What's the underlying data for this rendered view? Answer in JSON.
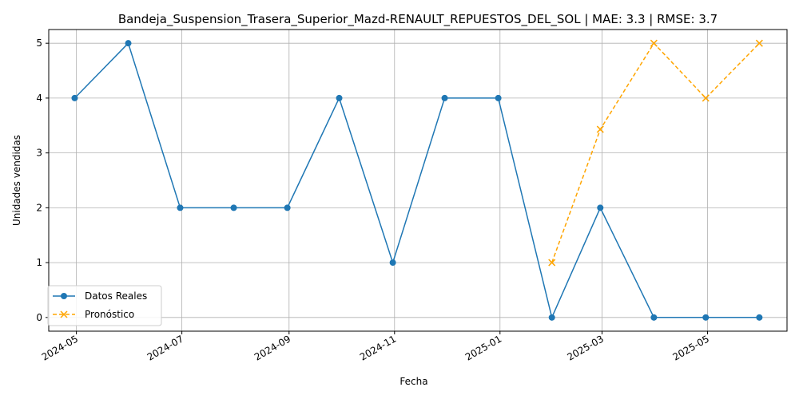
{
  "chart_data": {
    "type": "line",
    "title": "Bandeja_Suspension_Trasera_Superior_Mazd-RENAULT_REPUESTOS_DEL_SOL | MAE: 3.3 | RMSE: 3.7",
    "xlabel": "Fecha",
    "ylabel": "Unidades vendidas",
    "x_ticks": [
      "2024-05",
      "2024-07",
      "2024-09",
      "2024-11",
      "2025-01",
      "2025-03",
      "2025-05"
    ],
    "y_ticks": [
      0,
      1,
      2,
      3,
      4,
      5
    ],
    "ylim": [
      -0.25,
      5.25
    ],
    "xlim": [
      "2024-04-15",
      "2025-06-16"
    ],
    "grid": true,
    "legend_position": "lower-left",
    "series": [
      {
        "name": "Datos Reales",
        "color": "#1f77b4",
        "linestyle": "solid",
        "marker": "circle",
        "points": [
          {
            "x": "2024-04-30",
            "y": 4
          },
          {
            "x": "2024-05-31",
            "y": 5
          },
          {
            "x": "2024-06-30",
            "y": 2
          },
          {
            "x": "2024-07-31",
            "y": 2
          },
          {
            "x": "2024-08-31",
            "y": 2
          },
          {
            "x": "2024-09-30",
            "y": 4
          },
          {
            "x": "2024-10-31",
            "y": 1
          },
          {
            "x": "2024-11-30",
            "y": 4
          },
          {
            "x": "2024-12-31",
            "y": 4
          },
          {
            "x": "2025-01-31",
            "y": 0
          },
          {
            "x": "2025-02-28",
            "y": 2
          },
          {
            "x": "2025-03-31",
            "y": 0
          },
          {
            "x": "2025-04-30",
            "y": 0
          },
          {
            "x": "2025-05-31",
            "y": 0
          }
        ]
      },
      {
        "name": "Pronóstico",
        "color": "#ffa500",
        "linestyle": "dashed",
        "marker": "x",
        "points": [
          {
            "x": "2025-01-31",
            "y": 1.0
          },
          {
            "x": "2025-02-28",
            "y": 3.43
          },
          {
            "x": "2025-03-31",
            "y": 5.0
          },
          {
            "x": "2025-04-30",
            "y": 4.0
          },
          {
            "x": "2025-05-31",
            "y": 5.0
          }
        ]
      }
    ]
  }
}
